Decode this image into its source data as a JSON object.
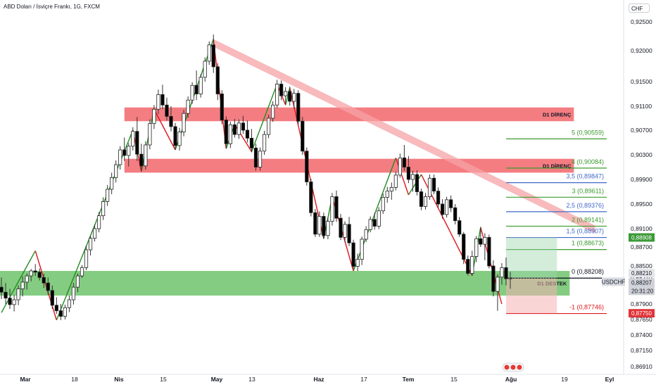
{
  "header": {
    "title": "ABD Doları / İsviçre Frankı, 1G, FXCM",
    "currency_button": "CHF"
  },
  "colors": {
    "bull": "#2b2b2b",
    "bear": "#000000",
    "zigzag_up": "#1f8c1f",
    "zigzag_down": "#e0161c",
    "resistance_zone": "#f36f74",
    "support_zone": "#7dc97a",
    "trendline_band": "#f5a3a6",
    "fib_green": "#3a9a2d",
    "fib_blue": "#4169c8",
    "fib_red": "#e0161c",
    "fib_black": "#131722",
    "price_tag_green": "#3b9a37",
    "price_tag_red": "#e03438"
  },
  "chart_data": {
    "type": "candlestick",
    "title": "ABD Doları / İsviçre Frankı, 1G, FXCM",
    "symbol": "USDCHF",
    "interval": "1G",
    "y_axis": {
      "ticks": [
        "0,92500",
        "0,92000",
        "0,91500",
        "0,91100",
        "0,90700",
        "0,90300",
        "0,89900",
        "0,89500",
        "0,89100",
        "0,88700",
        "0,88500",
        "0,88210",
        "0,87900",
        "0,87650",
        "0,87400",
        "0,87150",
        "0,86910"
      ],
      "tick_values": [
        0.925,
        0.92,
        0.915,
        0.911,
        0.907,
        0.903,
        0.899,
        0.895,
        0.891,
        0.887,
        0.885,
        0.8821,
        0.879,
        0.8765,
        0.874,
        0.8715,
        0.8691
      ],
      "range": [
        0.8684,
        0.9275
      ]
    },
    "x_axis": {
      "labels": [
        "Mar",
        "18",
        "Nis",
        "15",
        "May",
        "13",
        "Haz",
        "17",
        "Tem",
        "15",
        "Ağu",
        "19",
        "Eyl"
      ],
      "bold": [
        true,
        false,
        true,
        false,
        true,
        false,
        true,
        false,
        true,
        false,
        true,
        false,
        true
      ]
    },
    "candles": [
      [
        0.881,
        0.8822,
        0.8796,
        0.8804
      ],
      [
        0.8804,
        0.8815,
        0.879,
        0.8797
      ],
      [
        0.8797,
        0.8808,
        0.8782,
        0.8789
      ],
      [
        0.8789,
        0.8801,
        0.8778,
        0.8795
      ],
      [
        0.8795,
        0.8812,
        0.8788,
        0.8808
      ],
      [
        0.8808,
        0.8825,
        0.8799,
        0.8816
      ],
      [
        0.8816,
        0.8832,
        0.8807,
        0.8826
      ],
      [
        0.8826,
        0.8843,
        0.8817,
        0.8838
      ],
      [
        0.8838,
        0.8852,
        0.8826,
        0.8835
      ],
      [
        0.8835,
        0.8844,
        0.8818,
        0.8822
      ],
      [
        0.8822,
        0.8831,
        0.8809,
        0.8815
      ],
      [
        0.8815,
        0.8822,
        0.8801,
        0.8806
      ],
      [
        0.8806,
        0.8812,
        0.8782,
        0.8788
      ],
      [
        0.8788,
        0.8798,
        0.8774,
        0.8779
      ],
      [
        0.8779,
        0.879,
        0.8764,
        0.877
      ],
      [
        0.877,
        0.8789,
        0.8765,
        0.8784
      ],
      [
        0.8784,
        0.88,
        0.8777,
        0.8795
      ],
      [
        0.8795,
        0.8815,
        0.8789,
        0.881
      ],
      [
        0.881,
        0.8832,
        0.8804,
        0.8826
      ],
      [
        0.8826,
        0.8851,
        0.8821,
        0.8846
      ],
      [
        0.8846,
        0.8873,
        0.884,
        0.8867
      ],
      [
        0.8867,
        0.8895,
        0.8861,
        0.8889
      ],
      [
        0.8889,
        0.8917,
        0.8882,
        0.891
      ],
      [
        0.891,
        0.8937,
        0.8902,
        0.8931
      ],
      [
        0.8931,
        0.8961,
        0.8924,
        0.8954
      ],
      [
        0.8954,
        0.8981,
        0.8947,
        0.8974
      ],
      [
        0.8974,
        0.9001,
        0.8966,
        0.8993
      ],
      [
        0.8993,
        0.9021,
        0.8985,
        0.9014
      ],
      [
        0.9014,
        0.9044,
        0.9006,
        0.9038
      ],
      [
        0.9038,
        0.9058,
        0.902,
        0.9029
      ],
      [
        0.9029,
        0.9049,
        0.9011,
        0.9044
      ],
      [
        0.9044,
        0.9075,
        0.9037,
        0.9068
      ],
      [
        0.9068,
        0.9092,
        0.902,
        0.9031
      ],
      [
        0.9031,
        0.9048,
        0.9003,
        0.9012
      ],
      [
        0.9012,
        0.9052,
        0.9006,
        0.9046
      ],
      [
        0.9046,
        0.9088,
        0.9039,
        0.9081
      ],
      [
        0.9081,
        0.9112,
        0.9072,
        0.9105
      ],
      [
        0.9105,
        0.9137,
        0.9097,
        0.9129
      ],
      [
        0.9129,
        0.9145,
        0.9105,
        0.9112
      ],
      [
        0.9112,
        0.9124,
        0.9086,
        0.9093
      ],
      [
        0.9093,
        0.911,
        0.9068,
        0.9076
      ],
      [
        0.9076,
        0.9082,
        0.9038,
        0.9045
      ],
      [
        0.9045,
        0.9074,
        0.9037,
        0.9067
      ],
      [
        0.9067,
        0.9104,
        0.906,
        0.9098
      ],
      [
        0.9098,
        0.9126,
        0.9091,
        0.912
      ],
      [
        0.912,
        0.9149,
        0.9114,
        0.9144
      ],
      [
        0.9144,
        0.9168,
        0.912,
        0.913
      ],
      [
        0.913,
        0.9162,
        0.9124,
        0.9157
      ],
      [
        0.9157,
        0.9189,
        0.915,
        0.9183
      ],
      [
        0.9183,
        0.9216,
        0.9177,
        0.921
      ],
      [
        0.921,
        0.9228,
        0.9164,
        0.9174
      ],
      [
        0.9174,
        0.918,
        0.912,
        0.913
      ],
      [
        0.913,
        0.9136,
        0.908,
        0.9087
      ],
      [
        0.9087,
        0.9093,
        0.904,
        0.9048
      ],
      [
        0.9048,
        0.9084,
        0.9041,
        0.9079
      ],
      [
        0.9079,
        0.9089,
        0.9058,
        0.9063
      ],
      [
        0.9063,
        0.9088,
        0.9056,
        0.9082
      ],
      [
        0.9082,
        0.9094,
        0.9064,
        0.907
      ],
      [
        0.907,
        0.9086,
        0.905,
        0.9057
      ],
      [
        0.9057,
        0.9072,
        0.9034,
        0.9041
      ],
      [
        0.9041,
        0.9048,
        0.9004,
        0.901
      ],
      [
        0.901,
        0.9042,
        0.9004,
        0.9036
      ],
      [
        0.9036,
        0.9069,
        0.903,
        0.9063
      ],
      [
        0.9063,
        0.9096,
        0.9057,
        0.909
      ],
      [
        0.909,
        0.9118,
        0.9084,
        0.9112
      ],
      [
        0.9112,
        0.9153,
        0.9107,
        0.9146
      ],
      [
        0.9146,
        0.9152,
        0.912,
        0.9127
      ],
      [
        0.9127,
        0.9141,
        0.9113,
        0.9134
      ],
      [
        0.9134,
        0.9142,
        0.9111,
        0.9118
      ],
      [
        0.9118,
        0.9138,
        0.9106,
        0.9131
      ],
      [
        0.9131,
        0.9136,
        0.9079,
        0.9085
      ],
      [
        0.9085,
        0.9092,
        0.903,
        0.9036
      ],
      [
        0.9036,
        0.9042,
        0.898,
        0.8986
      ],
      [
        0.8986,
        0.8991,
        0.893,
        0.8936
      ],
      [
        0.8936,
        0.8942,
        0.8892,
        0.8898
      ],
      [
        0.8898,
        0.8938,
        0.8892,
        0.893
      ],
      [
        0.893,
        0.8936,
        0.8888,
        0.8895
      ],
      [
        0.8895,
        0.8928,
        0.8887,
        0.8922
      ],
      [
        0.8922,
        0.8968,
        0.8915,
        0.8962
      ],
      [
        0.8962,
        0.8972,
        0.8921,
        0.8927
      ],
      [
        0.8927,
        0.8934,
        0.8885,
        0.8891
      ],
      [
        0.8891,
        0.8922,
        0.888,
        0.8917
      ],
      [
        0.8917,
        0.8929,
        0.8872,
        0.8879
      ],
      [
        0.8879,
        0.8886,
        0.8843,
        0.8849
      ],
      [
        0.8849,
        0.8863,
        0.8838,
        0.8857
      ],
      [
        0.8857,
        0.8893,
        0.8851,
        0.8887
      ],
      [
        0.8887,
        0.8914,
        0.8881,
        0.8908
      ],
      [
        0.8908,
        0.893,
        0.8902,
        0.8925
      ],
      [
        0.8925,
        0.8936,
        0.8908,
        0.8914
      ],
      [
        0.8914,
        0.8945,
        0.8909,
        0.8939
      ],
      [
        0.8939,
        0.8967,
        0.8934,
        0.8961
      ],
      [
        0.8961,
        0.8978,
        0.8952,
        0.8971
      ],
      [
        0.8971,
        0.8985,
        0.8957,
        0.8977
      ],
      [
        0.8977,
        0.9003,
        0.8972,
        0.8997
      ],
      [
        0.8997,
        0.9032,
        0.8993,
        0.9025
      ],
      [
        0.9025,
        0.9046,
        0.9004,
        0.901
      ],
      [
        0.901,
        0.9028,
        0.8984,
        0.899
      ],
      [
        0.899,
        0.9004,
        0.897,
        0.8998
      ],
      [
        0.8998,
        0.9005,
        0.8964,
        0.897
      ],
      [
        0.897,
        0.8975,
        0.894,
        0.8946
      ],
      [
        0.8946,
        0.8968,
        0.8941,
        0.8962
      ],
      [
        0.8962,
        0.8998,
        0.8957,
        0.8992
      ],
      [
        0.8992,
        0.8998,
        0.8966,
        0.8971
      ],
      [
        0.8971,
        0.8977,
        0.8944,
        0.895
      ],
      [
        0.895,
        0.8958,
        0.8926,
        0.8933
      ],
      [
        0.8933,
        0.8962,
        0.8928,
        0.8957
      ],
      [
        0.8957,
        0.8964,
        0.8937,
        0.8944
      ],
      [
        0.8944,
        0.895,
        0.8917,
        0.8923
      ],
      [
        0.8923,
        0.8929,
        0.8892,
        0.8898
      ],
      [
        0.8898,
        0.8903,
        0.8852,
        0.8857
      ],
      [
        0.8857,
        0.8861,
        0.8827,
        0.8832
      ],
      [
        0.8832,
        0.8866,
        0.8826,
        0.886
      ],
      [
        0.886,
        0.8894,
        0.8854,
        0.8888
      ],
      [
        0.8888,
        0.8913,
        0.887,
        0.8876
      ],
      [
        0.8876,
        0.89,
        0.8856,
        0.8891
      ],
      [
        0.8891,
        0.8897,
        0.8844,
        0.885
      ],
      [
        0.885,
        0.8856,
        0.8799,
        0.8805
      ],
      [
        0.8805,
        0.883,
        0.8779,
        0.8823
      ],
      [
        0.8823,
        0.8853,
        0.8813,
        0.8846
      ],
      [
        0.8846,
        0.8859,
        0.8812,
        0.882
      ],
      [
        0.882,
        0.8836,
        0.8808,
        0.8821
      ]
    ],
    "zigzag": {
      "up_segments": [
        [
          [
            0,
            0.8776
          ],
          [
            8,
            0.8866
          ]
        ],
        [
          [
            13,
            0.8764
          ],
          [
            31,
            0.907
          ]
        ],
        [
          [
            33,
            0.9003
          ],
          [
            36,
            0.9105
          ]
        ],
        [
          [
            41,
            0.9038
          ],
          [
            50,
            0.922
          ]
        ],
        [
          [
            53,
            0.904
          ],
          [
            55,
            0.908
          ]
        ],
        [
          [
            59,
            0.9035
          ],
          [
            65,
            0.9146
          ]
        ],
        [
          [
            67,
            0.9112
          ],
          [
            68,
            0.914
          ]
        ],
        [
          [
            76,
            0.8888
          ],
          [
            78,
            0.8962
          ]
        ],
        [
          [
            83,
            0.8838
          ],
          [
            93,
            0.9025
          ]
        ],
        [
          [
            96,
            0.8965
          ],
          [
            99,
            0.8998
          ]
        ],
        [
          [
            111,
            0.8827
          ],
          [
            113,
            0.8912
          ]
        ]
      ],
      "down_segments": [
        [
          [
            8,
            0.8866
          ],
          [
            13,
            0.8764
          ]
        ],
        [
          [
            31,
            0.907
          ],
          [
            33,
            0.9003
          ]
        ],
        [
          [
            36,
            0.9105
          ],
          [
            41,
            0.9038
          ]
        ],
        [
          [
            50,
            0.922
          ],
          [
            53,
            0.904
          ]
        ],
        [
          [
            55,
            0.908
          ],
          [
            59,
            0.9035
          ]
        ],
        [
          [
            65,
            0.9146
          ],
          [
            67,
            0.9112
          ]
        ],
        [
          [
            68,
            0.914
          ],
          [
            76,
            0.8888
          ]
        ],
        [
          [
            78,
            0.8962
          ],
          [
            83,
            0.8838
          ]
        ],
        [
          [
            93,
            0.9025
          ],
          [
            96,
            0.8965
          ]
        ],
        [
          [
            99,
            0.8998
          ],
          [
            111,
            0.8827
          ]
        ],
        [
          [
            113,
            0.8912
          ],
          [
            118,
            0.879
          ]
        ]
      ]
    },
    "zones": [
      {
        "name": "resistance-upper",
        "label": "D1 DİRENÇ",
        "from": 0.9085,
        "to": 0.9108,
        "start_index": 29,
        "end_index": 135
      },
      {
        "name": "resistance-lower",
        "label": "D1 DİRENÇ",
        "from": 0.9001,
        "to": 0.90235,
        "start_index": 29,
        "end_index": 135
      },
      {
        "name": "support",
        "label": "D1 DESTEK",
        "from": 0.88,
        "to": 0.8838,
        "start_index": -6,
        "end_index": 134
      }
    ],
    "trendline": {
      "from": [
        50,
        0.922
      ],
      "to": [
        140,
        0.89
      ]
    },
    "fibonacci": [
      {
        "level": "5 (0,90559)",
        "value": 0.90559,
        "color": "#3a9a2d"
      },
      {
        "level": "4 (0,90084)",
        "value": 0.90084,
        "color": "#3a9a2d"
      },
      {
        "level": "3,5 (0,89847)",
        "value": 0.89847,
        "color": "#4169c8"
      },
      {
        "level": "3 (0,89611)",
        "value": 0.89611,
        "color": "#3a9a2d"
      },
      {
        "level": "2,5 (0,89376)",
        "value": 0.89376,
        "color": "#4169c8"
      },
      {
        "level": "2 (0,89141)",
        "value": 0.89141,
        "color": "#3a9a2d"
      },
      {
        "level": "1,5 (0,88907)",
        "value": 0.88907,
        "color": "#4169c8"
      },
      {
        "level": "1 (0,88673)",
        "value": 0.88673,
        "color": "#3a9a2d"
      },
      {
        "level": "0 (0,88208)",
        "value": 0.88208,
        "color": "#131722"
      },
      {
        "level": "-1 (0,87746)",
        "value": 0.87746,
        "color": "#e0161c"
      }
    ],
    "position_tool": {
      "entry": 0.88208,
      "target": 0.88908,
      "stop": 0.8775,
      "start_index": 119,
      "end_index": 131
    },
    "price_tags": [
      {
        "text": "0,88908",
        "value": 0.88908,
        "style": "green"
      },
      {
        "text": "0,88210",
        "value": 0.8821,
        "style": "plain"
      },
      {
        "text": "0,88207",
        "value": 0.88207,
        "style": "plain-light"
      },
      {
        "text": "USDCHF",
        "value": 0.88207,
        "style": "symbol"
      },
      {
        "text": "20:31:20",
        "value": 0.88207,
        "style": "timer"
      },
      {
        "text": "0,87750",
        "value": 0.8775,
        "style": "red"
      }
    ]
  }
}
